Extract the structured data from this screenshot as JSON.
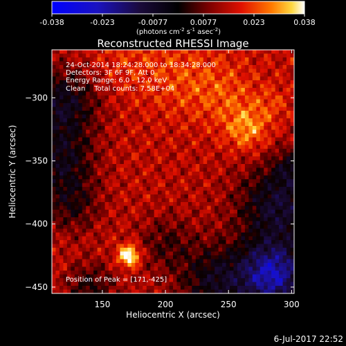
{
  "colorbar": {
    "tick_labels": [
      "-0.038",
      "-0.023",
      "-0.0077",
      "0.0077",
      "0.023",
      "0.038"
    ],
    "unit_main": "(photons cm",
    "unit_exp1": "-2",
    "unit_mid": " s",
    "unit_exp2": "-1",
    "unit_tail": " asec",
    "unit_exp3": "-2",
    "unit_end": ")"
  },
  "chart_data": {
    "type": "heatmap",
    "title": "Reconstructed RHESSI Image",
    "xlabel": "Heliocentric X (arcsec)",
    "ylabel": "Heliocentric Y (arcsec)",
    "xlim": [
      110,
      302
    ],
    "ylim": [
      -455,
      -262
    ],
    "x_ticks": [
      150,
      200,
      250,
      300
    ],
    "y_ticks": [
      -450,
      -400,
      -350,
      -300
    ],
    "x_tick_labels": [
      "150",
      "200",
      "250",
      "300"
    ],
    "y_tick_labels": [
      "−450",
      "−400",
      "−350",
      "−300"
    ],
    "color_range": [
      -0.038,
      0.038
    ],
    "colormap": "blue-black-red-yellow-white",
    "peak": [
      171,
      -425
    ],
    "info_lines": [
      "24-Oct-2014 18:24:28.000 to 18:34:28.000",
      "Detectors: 3F 6F 9F, Att 0",
      "Energy Range: 6.0 - 12.0 keV",
      "Clean    Total counts: 7.58E+04"
    ],
    "peak_label": "Position of Peak = [171,-425]"
  },
  "footer_date": "6-Jul-2017 22:52"
}
